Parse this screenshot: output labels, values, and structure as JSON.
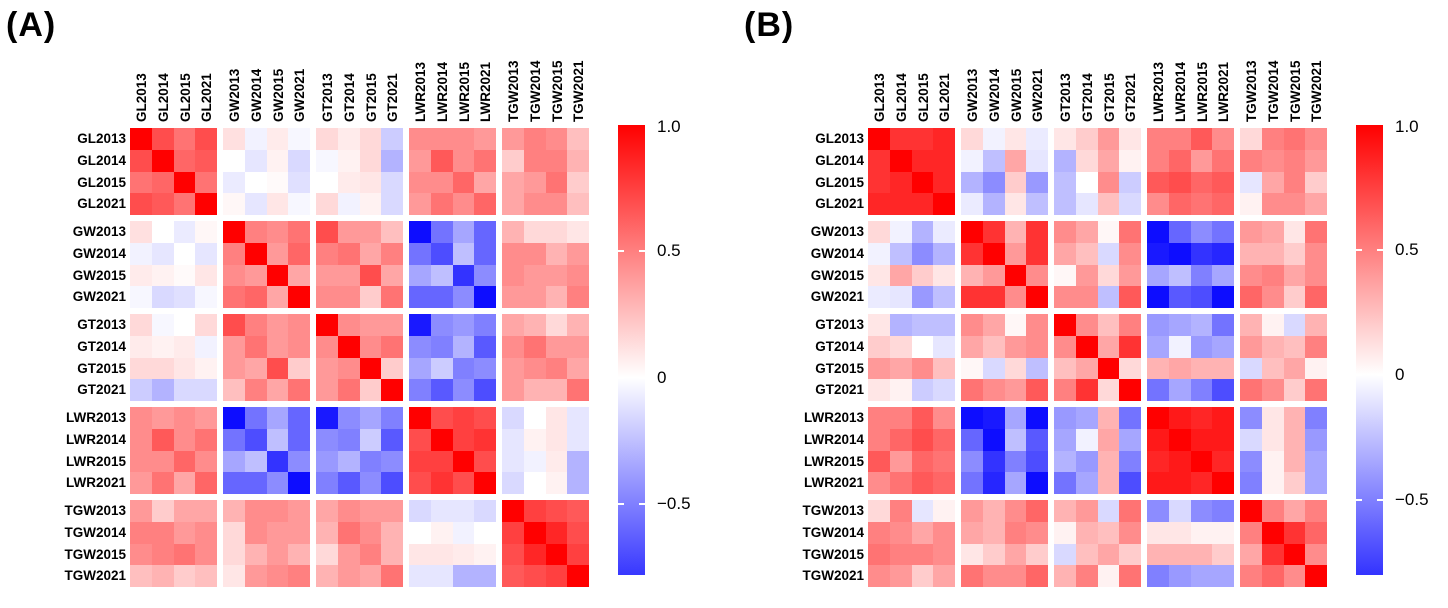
{
  "page": {
    "background": "#ffffff"
  },
  "chart_data": [
    {
      "type": "heatmap",
      "title": "(A)",
      "categories": [
        "GL2013",
        "GL2014",
        "GL2015",
        "GL2021",
        "GW2013",
        "GW2014",
        "GW2015",
        "GW2021",
        "GT2013",
        "GT2014",
        "GT2015",
        "GT2021",
        "LWR2013",
        "LWR2014",
        "LWR2015",
        "LWR2021",
        "TGW2013",
        "TGW2014",
        "TGW2015",
        "TGW2021"
      ],
      "groups": [
        "GL",
        "GW",
        "GT",
        "LWR",
        "TGW"
      ],
      "years_per_group": [
        "2013",
        "2014",
        "2015",
        "2021"
      ],
      "legend_position": "right",
      "grid": false,
      "colormap": {
        "negative": "#0000ff",
        "zero": "#ffffff",
        "positive": "#ff0000"
      },
      "colorbar": {
        "tick_labels": [
          "1.0",
          "0.5",
          "0",
          "−0.5"
        ],
        "tick_values": [
          1.0,
          0.5,
          0,
          -0.5
        ],
        "range_min": -0.78,
        "range_max": 1.0
      },
      "matrix": [
        [
          1.0,
          0.7,
          0.55,
          0.7,
          0.12,
          -0.05,
          0.08,
          -0.03,
          0.15,
          0.08,
          0.15,
          -0.2,
          0.45,
          0.45,
          0.45,
          0.4,
          0.4,
          0.5,
          0.45,
          0.25
        ],
        [
          0.7,
          1.0,
          0.6,
          0.65,
          0.0,
          -0.1,
          0.05,
          -0.15,
          -0.03,
          0.05,
          0.15,
          -0.3,
          0.4,
          0.65,
          0.45,
          0.55,
          0.2,
          0.5,
          0.5,
          0.3
        ],
        [
          0.55,
          0.6,
          1.0,
          0.55,
          -0.08,
          0.0,
          0.02,
          -0.12,
          0.0,
          0.08,
          0.1,
          -0.15,
          0.45,
          0.45,
          0.6,
          0.35,
          0.35,
          0.4,
          0.55,
          0.2
        ],
        [
          0.7,
          0.65,
          0.55,
          1.0,
          0.03,
          -0.1,
          0.1,
          -0.03,
          0.15,
          -0.05,
          0.05,
          -0.15,
          0.4,
          0.55,
          0.45,
          0.6,
          0.35,
          0.45,
          0.45,
          0.25
        ],
        [
          0.12,
          0.0,
          -0.08,
          0.03,
          1.0,
          0.5,
          0.45,
          0.55,
          0.7,
          0.4,
          0.4,
          0.25,
          -0.95,
          -0.55,
          -0.35,
          -0.6,
          0.3,
          0.15,
          0.15,
          0.1
        ],
        [
          -0.05,
          -0.1,
          0.0,
          -0.1,
          0.5,
          1.0,
          0.4,
          0.6,
          0.5,
          0.55,
          0.35,
          0.5,
          -0.55,
          -0.7,
          -0.25,
          -0.6,
          0.45,
          0.45,
          0.3,
          0.4
        ],
        [
          0.08,
          0.05,
          0.02,
          0.1,
          0.45,
          0.4,
          1.0,
          0.35,
          0.4,
          0.4,
          0.7,
          0.35,
          -0.35,
          -0.25,
          -0.8,
          -0.45,
          0.45,
          0.4,
          0.4,
          0.45
        ],
        [
          -0.03,
          -0.15,
          -0.12,
          -0.03,
          0.55,
          0.6,
          0.35,
          1.0,
          0.45,
          0.45,
          0.2,
          0.55,
          -0.6,
          -0.6,
          -0.45,
          -0.95,
          0.4,
          0.4,
          0.3,
          0.5
        ],
        [
          0.15,
          -0.03,
          0.0,
          0.15,
          0.7,
          0.5,
          0.4,
          0.45,
          1.0,
          0.45,
          0.4,
          0.4,
          -0.9,
          -0.45,
          -0.4,
          -0.5,
          0.35,
          0.3,
          0.15,
          0.3
        ],
        [
          0.08,
          0.05,
          0.08,
          -0.05,
          0.4,
          0.55,
          0.4,
          0.45,
          0.45,
          1.0,
          0.45,
          0.55,
          -0.45,
          -0.5,
          -0.3,
          -0.65,
          0.45,
          0.55,
          0.4,
          0.4
        ],
        [
          0.15,
          0.15,
          0.1,
          0.05,
          0.4,
          0.35,
          0.7,
          0.2,
          0.4,
          0.45,
          1.0,
          0.2,
          -0.35,
          -0.2,
          -0.5,
          -0.45,
          0.4,
          0.45,
          0.5,
          0.35
        ],
        [
          -0.2,
          -0.3,
          -0.15,
          -0.15,
          0.25,
          0.5,
          0.35,
          0.55,
          0.4,
          0.55,
          0.2,
          1.0,
          -0.5,
          -0.65,
          -0.45,
          -0.7,
          0.4,
          0.3,
          0.3,
          0.55
        ],
        [
          0.45,
          0.4,
          0.45,
          0.4,
          -0.95,
          -0.55,
          -0.35,
          -0.6,
          -0.9,
          -0.45,
          -0.35,
          -0.5,
          1.0,
          0.7,
          0.75,
          0.7,
          -0.15,
          0.0,
          0.1,
          -0.1
        ],
        [
          0.45,
          0.65,
          0.45,
          0.55,
          -0.55,
          -0.7,
          -0.25,
          -0.6,
          -0.45,
          -0.5,
          -0.2,
          -0.65,
          0.7,
          1.0,
          0.75,
          0.8,
          -0.1,
          0.05,
          0.1,
          -0.1
        ],
        [
          0.45,
          0.45,
          0.6,
          0.45,
          -0.35,
          -0.25,
          -0.8,
          -0.45,
          -0.4,
          -0.3,
          -0.5,
          -0.45,
          0.75,
          0.75,
          1.0,
          0.7,
          -0.1,
          -0.05,
          0.08,
          -0.3
        ],
        [
          0.4,
          0.55,
          0.35,
          0.6,
          -0.6,
          -0.6,
          -0.45,
          -0.95,
          -0.5,
          -0.65,
          -0.45,
          -0.7,
          0.7,
          0.8,
          0.7,
          1.0,
          -0.15,
          0.0,
          0.05,
          -0.3
        ],
        [
          0.4,
          0.2,
          0.35,
          0.35,
          0.3,
          0.45,
          0.45,
          0.4,
          0.35,
          0.45,
          0.4,
          0.4,
          -0.15,
          -0.1,
          -0.1,
          -0.15,
          1.0,
          0.75,
          0.7,
          0.65
        ],
        [
          0.5,
          0.5,
          0.4,
          0.45,
          0.15,
          0.45,
          0.4,
          0.4,
          0.3,
          0.55,
          0.45,
          0.3,
          0.0,
          0.05,
          -0.05,
          0.0,
          0.75,
          1.0,
          0.85,
          0.7
        ],
        [
          0.45,
          0.5,
          0.55,
          0.45,
          0.15,
          0.3,
          0.4,
          0.3,
          0.15,
          0.4,
          0.5,
          0.3,
          0.1,
          0.1,
          0.08,
          0.05,
          0.7,
          0.85,
          1.0,
          0.75
        ],
        [
          0.25,
          0.3,
          0.2,
          0.25,
          0.1,
          0.4,
          0.45,
          0.5,
          0.3,
          0.4,
          0.35,
          0.55,
          -0.1,
          -0.1,
          -0.3,
          -0.3,
          0.65,
          0.7,
          0.75,
          1.0
        ]
      ]
    },
    {
      "type": "heatmap",
      "title": "(B)",
      "categories": [
        "GL2013",
        "GL2014",
        "GL2015",
        "GL2021",
        "GW2013",
        "GW2014",
        "GW2015",
        "GW2021",
        "GT2013",
        "GT2014",
        "GT2015",
        "GT2021",
        "LWR2013",
        "LWR2014",
        "LWR2015",
        "LWR2021",
        "TGW2013",
        "TGW2014",
        "TGW2015",
        "TGW2021"
      ],
      "groups": [
        "GL",
        "GW",
        "GT",
        "LWR",
        "TGW"
      ],
      "years_per_group": [
        "2013",
        "2014",
        "2015",
        "2021"
      ],
      "legend_position": "right",
      "grid": false,
      "colormap": {
        "negative": "#0000ff",
        "zero": "#ffffff",
        "positive": "#ff0000"
      },
      "colorbar": {
        "tick_labels": [
          "1.0",
          "0.5",
          "0",
          "−0.5"
        ],
        "tick_values": [
          1.0,
          0.5,
          0,
          -0.5
        ],
        "range_min": -0.8,
        "range_max": 1.0
      },
      "matrix": [
        [
          1.0,
          0.8,
          0.8,
          0.85,
          0.15,
          -0.05,
          0.1,
          -0.08,
          0.1,
          0.2,
          0.4,
          0.1,
          0.5,
          0.5,
          0.65,
          0.45,
          0.15,
          0.5,
          0.55,
          0.45
        ],
        [
          0.8,
          1.0,
          0.85,
          0.85,
          -0.05,
          -0.25,
          0.35,
          -0.1,
          -0.3,
          0.15,
          0.35,
          0.05,
          0.5,
          0.6,
          0.4,
          0.55,
          0.5,
          0.45,
          0.5,
          0.4
        ],
        [
          0.8,
          0.85,
          1.0,
          0.85,
          -0.3,
          -0.45,
          0.2,
          -0.4,
          -0.25,
          0.0,
          0.45,
          -0.2,
          0.65,
          0.7,
          0.6,
          0.65,
          -0.1,
          0.35,
          0.5,
          0.2
        ],
        [
          0.85,
          0.85,
          0.85,
          1.0,
          -0.08,
          -0.3,
          0.1,
          -0.25,
          -0.25,
          -0.1,
          0.25,
          -0.15,
          0.45,
          0.6,
          0.55,
          0.6,
          0.05,
          0.45,
          0.45,
          0.35
        ],
        [
          0.15,
          -0.05,
          -0.3,
          -0.08,
          1.0,
          0.8,
          0.3,
          0.8,
          0.45,
          0.35,
          0.03,
          0.55,
          -0.95,
          -0.6,
          -0.45,
          -0.55,
          0.4,
          0.35,
          0.1,
          0.55
        ],
        [
          -0.05,
          -0.25,
          -0.45,
          -0.3,
          0.8,
          1.0,
          0.4,
          0.8,
          0.35,
          0.25,
          -0.15,
          0.45,
          -0.9,
          -0.95,
          -0.8,
          -0.85,
          0.3,
          0.3,
          0.2,
          0.45
        ],
        [
          0.1,
          0.35,
          0.2,
          0.1,
          0.3,
          0.4,
          1.0,
          0.45,
          0.03,
          0.4,
          0.15,
          0.4,
          -0.35,
          -0.25,
          -0.5,
          -0.35,
          0.45,
          0.5,
          0.35,
          0.45
        ],
        [
          -0.08,
          -0.1,
          -0.4,
          -0.25,
          0.8,
          0.8,
          0.45,
          1.0,
          0.45,
          0.45,
          -0.25,
          0.65,
          -0.95,
          -0.65,
          -0.7,
          -0.95,
          0.6,
          0.45,
          0.2,
          0.6
        ],
        [
          0.1,
          -0.3,
          -0.25,
          -0.25,
          0.45,
          0.35,
          0.03,
          0.45,
          1.0,
          0.45,
          0.25,
          0.5,
          -0.4,
          -0.35,
          -0.3,
          -0.55,
          0.3,
          0.05,
          -0.15,
          0.3
        ],
        [
          0.2,
          0.15,
          0.0,
          -0.1,
          0.35,
          0.25,
          0.4,
          0.45,
          0.45,
          1.0,
          0.35,
          0.8,
          -0.35,
          -0.05,
          -0.4,
          -0.35,
          0.4,
          0.3,
          0.25,
          0.5
        ],
        [
          0.4,
          0.35,
          0.45,
          0.25,
          0.03,
          -0.15,
          0.15,
          -0.25,
          0.25,
          0.35,
          1.0,
          0.15,
          0.3,
          0.35,
          0.3,
          0.3,
          -0.15,
          0.25,
          0.35,
          0.05
        ],
        [
          0.1,
          0.05,
          -0.2,
          -0.15,
          0.55,
          0.45,
          0.4,
          0.65,
          0.5,
          0.8,
          0.15,
          1.0,
          -0.55,
          -0.35,
          -0.5,
          -0.7,
          0.55,
          0.45,
          0.2,
          0.55
        ],
        [
          0.5,
          0.5,
          0.65,
          0.45,
          -0.95,
          -0.9,
          -0.35,
          -0.95,
          -0.4,
          -0.35,
          0.3,
          -0.55,
          1.0,
          0.9,
          0.85,
          0.9,
          -0.45,
          0.1,
          0.3,
          -0.5
        ],
        [
          0.5,
          0.6,
          0.7,
          0.6,
          -0.6,
          -0.95,
          -0.25,
          -0.65,
          -0.35,
          -0.05,
          0.35,
          -0.35,
          0.9,
          1.0,
          0.9,
          0.9,
          -0.15,
          0.1,
          0.3,
          -0.4
        ],
        [
          0.65,
          0.4,
          0.6,
          0.55,
          -0.45,
          -0.8,
          -0.5,
          -0.7,
          -0.3,
          -0.4,
          0.3,
          -0.5,
          0.85,
          0.9,
          1.0,
          0.85,
          -0.45,
          0.05,
          0.3,
          -0.35
        ],
        [
          0.45,
          0.55,
          0.65,
          0.6,
          -0.55,
          -0.85,
          -0.35,
          -0.95,
          -0.55,
          -0.35,
          0.3,
          -0.7,
          0.9,
          0.9,
          0.85,
          1.0,
          -0.5,
          0.05,
          0.2,
          -0.35
        ],
        [
          0.15,
          0.5,
          -0.1,
          0.05,
          0.4,
          0.3,
          0.45,
          0.6,
          0.3,
          0.4,
          -0.15,
          0.55,
          -0.45,
          -0.15,
          -0.45,
          -0.5,
          1.0,
          0.5,
          0.35,
          0.5
        ],
        [
          0.5,
          0.45,
          0.35,
          0.45,
          0.35,
          0.3,
          0.5,
          0.45,
          0.05,
          0.3,
          0.25,
          0.45,
          0.1,
          0.1,
          0.05,
          0.05,
          0.5,
          1.0,
          0.8,
          0.6
        ],
        [
          0.55,
          0.5,
          0.5,
          0.45,
          0.1,
          0.2,
          0.35,
          0.2,
          -0.15,
          0.25,
          0.35,
          0.2,
          0.3,
          0.3,
          0.3,
          0.2,
          0.35,
          0.8,
          1.0,
          0.45
        ],
        [
          0.45,
          0.4,
          0.2,
          0.35,
          0.55,
          0.45,
          0.45,
          0.6,
          0.3,
          0.5,
          0.05,
          0.55,
          -0.5,
          -0.4,
          -0.35,
          -0.35,
          0.5,
          0.6,
          0.45,
          1.0
        ]
      ]
    }
  ]
}
